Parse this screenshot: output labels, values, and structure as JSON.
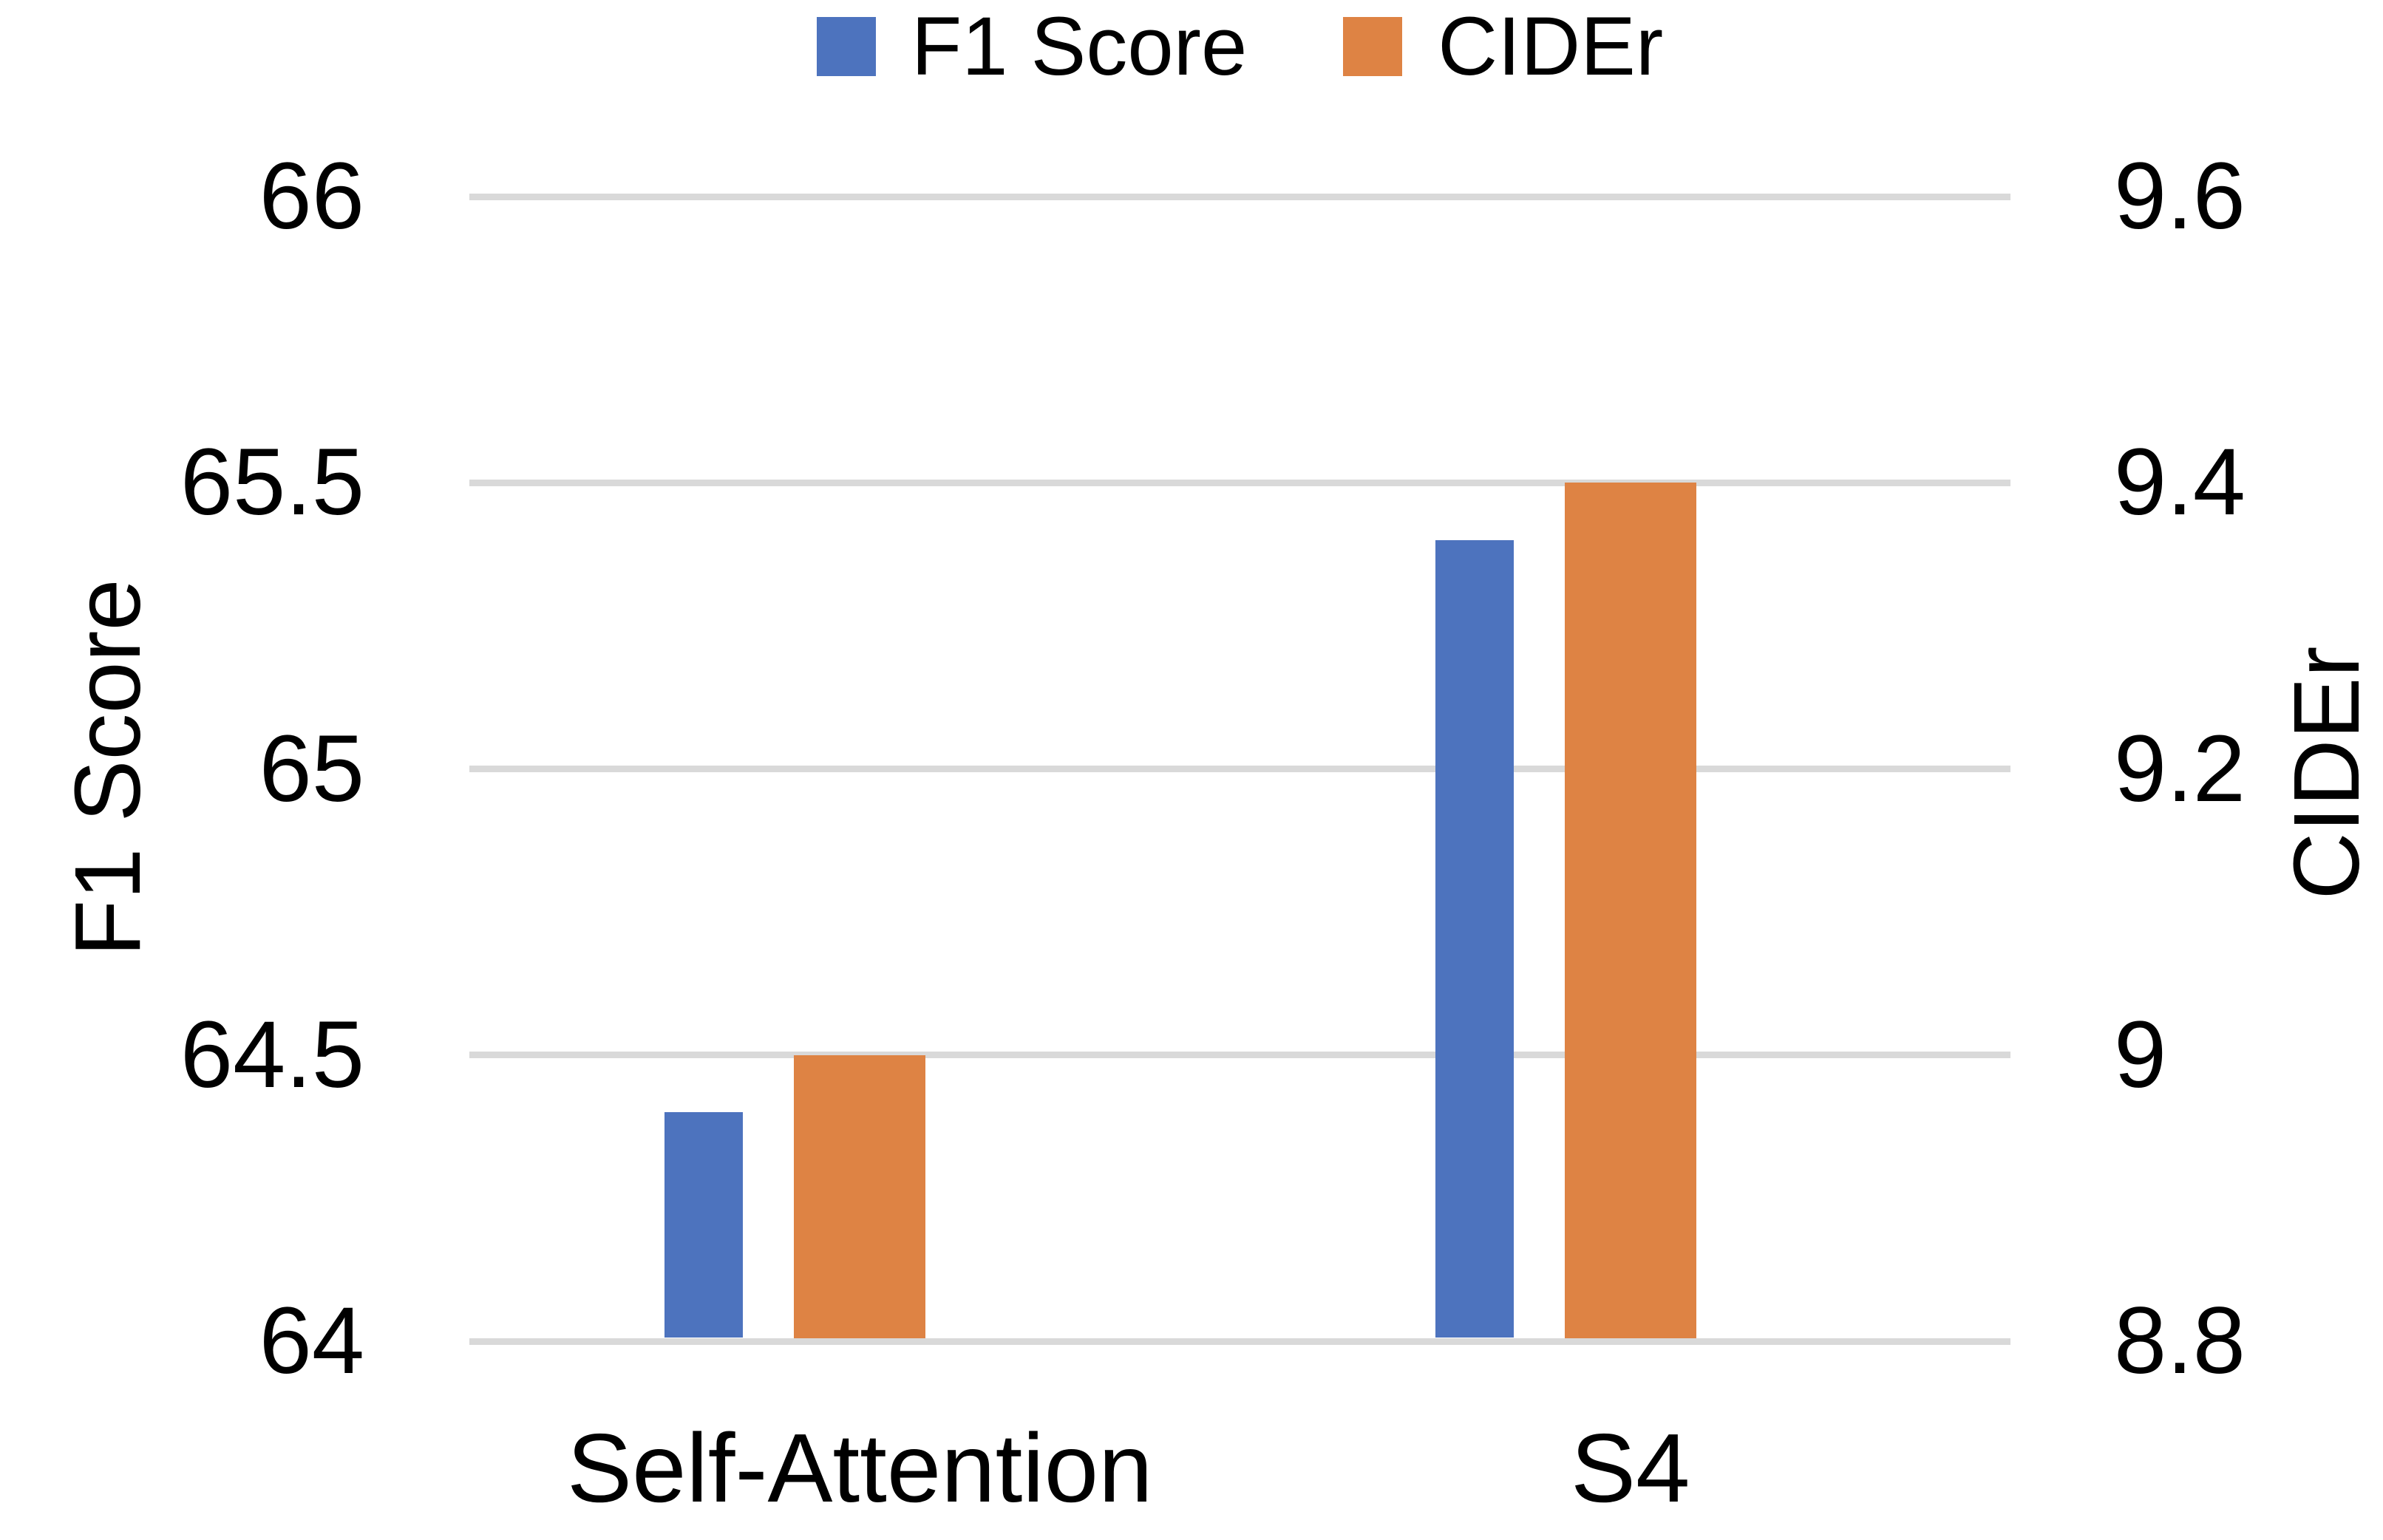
{
  "chart_data": {
    "type": "bar",
    "title": "",
    "categories": [
      "Self-Attention",
      "S4"
    ],
    "series": [
      {
        "name": "F1 Score",
        "axis": "left",
        "color": "#4D73BE",
        "values": [
          64.4,
          65.4
        ]
      },
      {
        "name": "CIDEr",
        "axis": "right",
        "color": "#DE8344",
        "values": [
          9.0,
          9.4
        ]
      }
    ],
    "axes": {
      "left": {
        "label": "F1 Score",
        "min": 64,
        "max": 66,
        "tick_step": 0.5,
        "ticks": [
          "66",
          "65.5",
          "65",
          "64.5",
          "64"
        ]
      },
      "right": {
        "label": "CIDEr",
        "min": 8.8,
        "max": 9.6,
        "tick_step": 0.2,
        "ticks": [
          "9.6",
          "9.4",
          "9.2",
          "9",
          "8.8"
        ]
      }
    },
    "legend": {
      "position": "top",
      "entries": [
        "F1 Score",
        "CIDEr"
      ]
    },
    "grid": {
      "shown": true,
      "color": "#D9D9D9"
    },
    "colors": {
      "background": "#FFFFFF",
      "text": "#000000"
    }
  }
}
